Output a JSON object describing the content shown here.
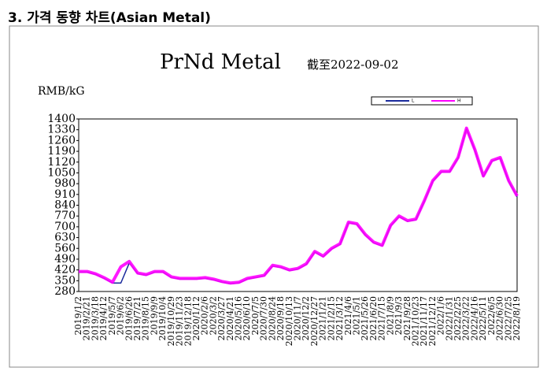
{
  "heading": "3. 가격 동향 차트(Asian Metal)",
  "chart_data": {
    "type": "line",
    "title": "PrNd Metal",
    "subtitle": "截至2022-09-02",
    "y_label": "RMB/kG",
    "categories": [
      "2019/1/2",
      "2019/2/21",
      "2019/3/18",
      "2019/4/12",
      "2019/5/7",
      "2019/6/2",
      "2019/6/26",
      "2019/7/21",
      "2019/8/15",
      "2019/9/9",
      "2019/10/4",
      "2019/10/29",
      "2019/11/23",
      "2019/12/18",
      "2020/1/12",
      "2020/2/6",
      "2020/3/2",
      "2020/3/27",
      "2020/4/21",
      "2020/5/16",
      "2020/6/10",
      "2020/7/5",
      "2020/7/30",
      "2020/8/24",
      "2020/9/18",
      "2020/10/13",
      "2020/11/7",
      "2020/12/2",
      "2020/12/27",
      "2021/1/21",
      "2021/2/15",
      "2021/3/12",
      "2021/4/6",
      "2021/5/1",
      "2021/5/26",
      "2021/6/20",
      "2021/7/15",
      "2021/8/9",
      "2021/9/3",
      "2021/9/28",
      "2021/10/23",
      "2021/11/17",
      "2021/12/12",
      "2022/1/6",
      "2022/1/31",
      "2022/2/25",
      "2022/3/22",
      "2022/4/16",
      "2022/5/11",
      "2022/6/5",
      "2022/6/30",
      "2022/7/25",
      "2022/8/19"
    ],
    "series": [
      {
        "name": "L",
        "color": "#1a2a9c",
        "values": [
          405,
          405,
          390,
          365,
          335,
          335,
          465,
          395,
          385,
          405,
          405,
          370,
          360,
          360,
          360,
          365,
          355,
          340,
          330,
          335,
          360,
          370,
          380,
          445,
          435,
          415,
          425,
          455,
          535,
          505,
          555,
          585,
          725,
          715,
          645,
          595,
          575,
          705,
          765,
          735,
          745,
          865,
          995,
          1055,
          1055,
          1145,
          1335,
          1195,
          1025,
          1125,
          1145,
          995,
          895
        ]
      },
      {
        "name": "H",
        "color": "#ff00ff",
        "values": [
          410,
          410,
          395,
          370,
          340,
          440,
          475,
          400,
          390,
          410,
          410,
          375,
          365,
          365,
          365,
          370,
          360,
          345,
          335,
          340,
          365,
          375,
          385,
          450,
          440,
          420,
          430,
          460,
          540,
          510,
          560,
          590,
          730,
          720,
          650,
          600,
          580,
          710,
          770,
          740,
          750,
          870,
          1000,
          1060,
          1060,
          1150,
          1340,
          1200,
          1030,
          1130,
          1150,
          1000,
          900
        ]
      }
    ],
    "ylim": [
      280,
      1400
    ],
    "yticks": [
      280,
      350,
      420,
      490,
      560,
      630,
      700,
      770,
      840,
      910,
      980,
      1050,
      1120,
      1190,
      1260,
      1330,
      1400
    ],
    "grid": false,
    "legend": "top-right"
  }
}
